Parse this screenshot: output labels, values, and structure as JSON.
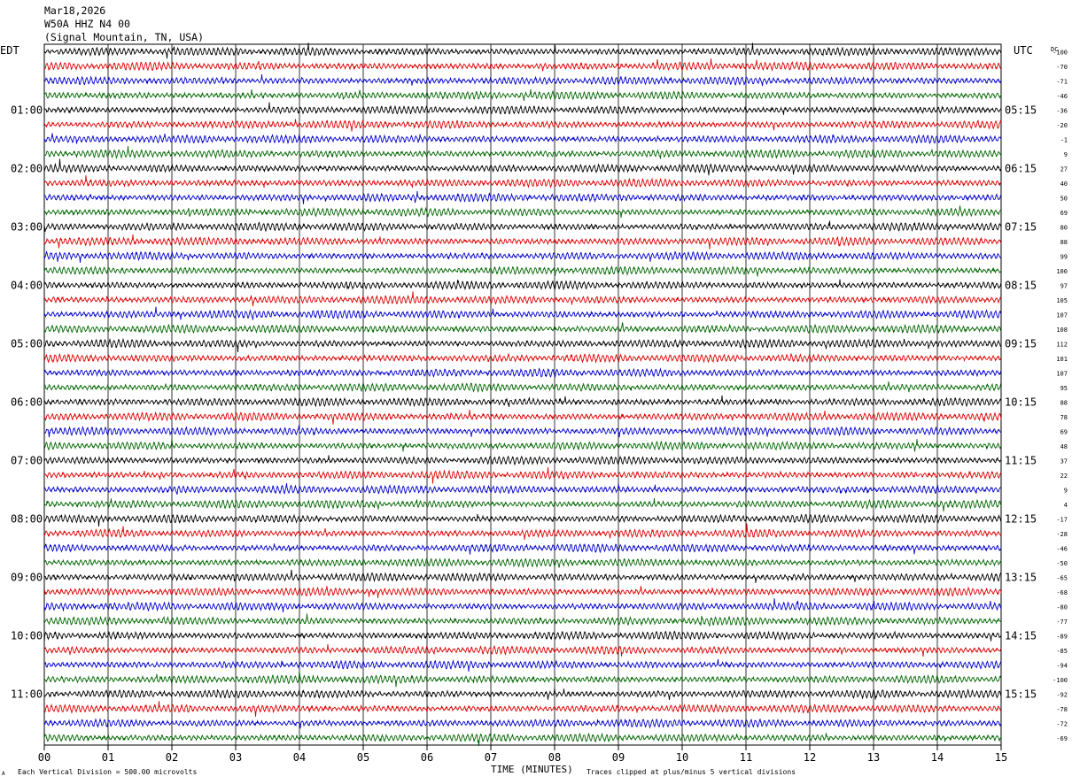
{
  "header": {
    "date": "Mar18,2026",
    "station": "W50A HHZ N4 00",
    "location": "(Signal Mountain, TN, USA)"
  },
  "left_axis_label": "EDT",
  "right_axis_label": "UTC",
  "dc_label": "DC",
  "footer": {
    "scale_note": "Each Vertical Division =  500.00 microvolts",
    "clip_note": "Traces clipped at plus/minus 5 vertical divisions",
    "corner_mark": "A"
  },
  "chart_data": {
    "type": "line",
    "xlabel": "TIME (MINUTES)",
    "x_ticks": [
      "00",
      "01",
      "02",
      "03",
      "04",
      "05",
      "06",
      "07",
      "08",
      "09",
      "10",
      "11",
      "12",
      "13",
      "14",
      "15"
    ],
    "xlim": [
      0,
      15
    ],
    "rows_per_hour": 4,
    "trace_colors": [
      "#000000",
      "#dd0000",
      "#0000cc",
      "#006600"
    ],
    "edt_labels": [
      "01:00",
      "02:00",
      "03:00",
      "04:00",
      "05:00",
      "06:00",
      "07:00",
      "08:00",
      "09:00",
      "10:00",
      "11:00"
    ],
    "utc_labels": [
      "05:15",
      "06:15",
      "07:15",
      "08:15",
      "09:15",
      "10:15",
      "11:15",
      "12:15",
      "13:15",
      "14:15",
      "15:15"
    ],
    "dc_offsets": [
      "-100",
      "-70",
      "-71",
      "-46",
      "-36",
      "-20",
      "-1",
      "9",
      "27",
      "40",
      "50",
      "69",
      "80",
      "88",
      "99",
      "100",
      "97",
      "105",
      "107",
      "108",
      "112",
      "101",
      "107",
      "95",
      "88",
      "78",
      "69",
      "48",
      "37",
      "22",
      "9",
      "4",
      "-17",
      "-28",
      "-46",
      "-50",
      "-65",
      "-68",
      "-80",
      "-77",
      "-89",
      "-85",
      "-94",
      "-100",
      "-92",
      "-78",
      "-72",
      "-69"
    ]
  }
}
